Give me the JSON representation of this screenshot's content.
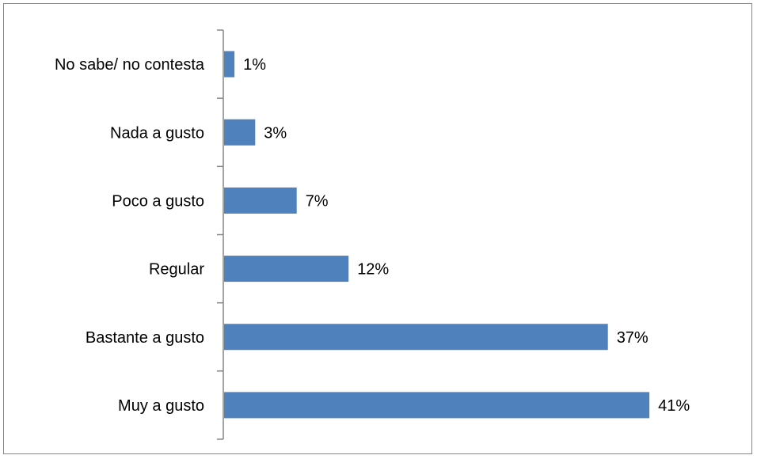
{
  "chart_data": {
    "type": "bar",
    "orientation": "horizontal",
    "categories": [
      "No sabe/ no contesta",
      "Nada a gusto",
      "Poco a gusto",
      "Regular",
      "Bastante a gusto",
      "Muy a gusto"
    ],
    "values": [
      1,
      3,
      7,
      12,
      37,
      41
    ],
    "value_labels": [
      "1%",
      "3%",
      "7%",
      "12%",
      "37%",
      "41%"
    ],
    "title": "",
    "xlabel": "",
    "ylabel": "",
    "xlim": [
      0,
      41
    ],
    "grid": false,
    "legend": "none",
    "bar_color": "#4F81BD",
    "axis_color": "#868686"
  }
}
